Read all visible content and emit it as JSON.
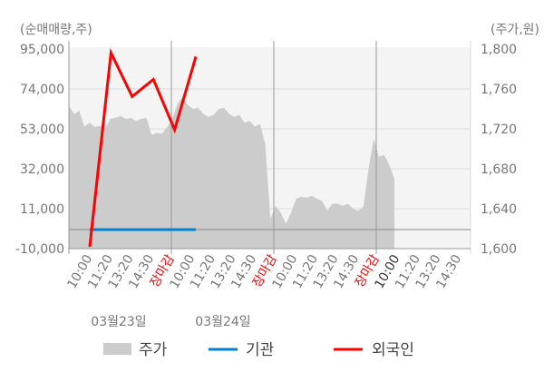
{
  "chart_data": {
    "type": "line",
    "left_axis_title": "(순매매량,주)",
    "right_axis_title": "(주가,원)",
    "left_ylim": [
      -10000,
      95000
    ],
    "left_ticks": [
      "95,000",
      "74,000",
      "53,000",
      "32,000",
      "11,000",
      "-10,000"
    ],
    "left_tick_values": [
      95000,
      74000,
      53000,
      32000,
      11000,
      -10000
    ],
    "right_ylim": [
      1600,
      1800
    ],
    "right_ticks": [
      "1,800",
      "1,760",
      "1,720",
      "1,680",
      "1,640",
      "1,600"
    ],
    "grid": true,
    "x_tick_labels": [
      "10:00",
      "11:20",
      "13:20",
      "14:30",
      "장마감",
      "10:00",
      "11:20",
      "13:20",
      "14:30",
      "장마감",
      "10:00",
      "11:20",
      "13:20",
      "14:30",
      "장마감",
      "10:00",
      "11:20",
      "13:20",
      "14:30"
    ],
    "x_tick_colors": [
      "#777777",
      "#777777",
      "#777777",
      "#777777",
      "#ff0000",
      "#777777",
      "#777777",
      "#777777",
      "#777777",
      "#ff0000",
      "#777777",
      "#777777",
      "#777777",
      "#777777",
      "#ff0000",
      "#333333",
      "#777777",
      "#777777",
      "#777777"
    ],
    "date_labels": [
      "03월23일",
      "03월24일"
    ],
    "series": [
      {
        "name": "주가",
        "kind": "area",
        "axis": "right",
        "color": "#cccccc",
        "values": [
          1743,
          1735,
          1738,
          1722,
          1726,
          1722,
          1723,
          1720,
          1730,
          1731,
          1733,
          1730,
          1731,
          1728,
          1730,
          1731,
          1714,
          1716,
          1715,
          1722,
          1730,
          1745,
          1752,
          1744,
          1740,
          1741,
          1735,
          1732,
          1734,
          1740,
          1741,
          1735,
          1732,
          1734,
          1726,
          1728,
          1722,
          1725,
          1705,
          1630,
          1643,
          1636,
          1625,
          1636,
          1650,
          1652,
          1651,
          1653,
          1650,
          1648,
          1638,
          1645,
          1645,
          1643,
          1645,
          1640,
          1638,
          1642,
          1680,
          1710,
          1692,
          1694,
          1684,
          1670
        ]
      },
      {
        "name": "기관",
        "kind": "line",
        "axis": "left",
        "color": "#0082d0",
        "values": [
          0,
          0,
          0,
          0,
          0,
          0
        ]
      },
      {
        "name": "외국인",
        "kind": "line",
        "axis": "left",
        "color": "#ff0000",
        "values": [
          -9000,
          93000,
          70000,
          79000,
          52500,
          91000
        ]
      }
    ],
    "legend_position": "bottom",
    "legend": [
      {
        "label": "주가",
        "color": "#cccccc"
      },
      {
        "label": "기관",
        "color": "#0082d0"
      },
      {
        "label": "외국인",
        "color": "#ff0000"
      }
    ]
  }
}
